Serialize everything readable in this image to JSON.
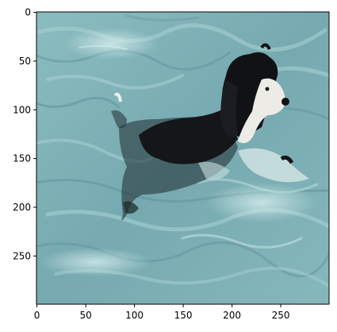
{
  "image": {
    "subject_icon": "dog-swimming-icon",
    "colors": {
      "water_base": "#7fb0b5",
      "water_light": "#a9d0d2",
      "water_dark": "#4f8790",
      "fur_dark": "#15161a",
      "fur_white": "#eeeeea",
      "axis": "#000000"
    }
  },
  "axes": {
    "x": {
      "range": [
        0,
        299
      ],
      "ticks": [
        0,
        50,
        100,
        150,
        200,
        250
      ],
      "tick_labels": [
        "0",
        "50",
        "100",
        "150",
        "200",
        "250"
      ]
    },
    "y": {
      "range": [
        0,
        299
      ],
      "inverted": true,
      "ticks": [
        0,
        50,
        100,
        150,
        200,
        250
      ],
      "tick_labels": [
        "0",
        "50",
        "100",
        "150",
        "200",
        "250"
      ]
    }
  }
}
